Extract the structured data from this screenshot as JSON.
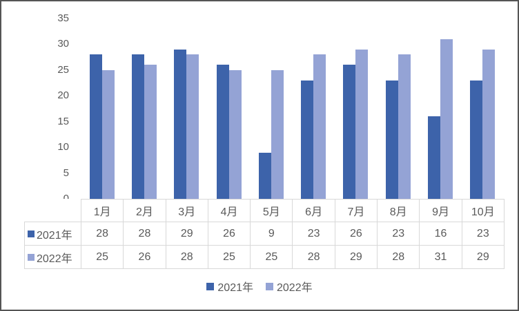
{
  "colors": {
    "series1": "#3D63AA",
    "series2": "#94A3D5",
    "text": "#595959",
    "table_border": "#d8d8d8",
    "frame_border": "#555555",
    "background": "#ffffff"
  },
  "chart_data": {
    "type": "bar",
    "title": "",
    "xlabel": "",
    "ylabel": "",
    "categories": [
      "1月",
      "2月",
      "3月",
      "4月",
      "5月",
      "6月",
      "7月",
      "8月",
      "9月",
      "10月"
    ],
    "series": [
      {
        "name": "2021年",
        "color": "#3D63AA",
        "values": [
          28,
          28,
          29,
          26,
          9,
          23,
          26,
          23,
          16,
          23
        ]
      },
      {
        "name": "2022年",
        "color": "#94A3D5",
        "values": [
          25,
          26,
          28,
          25,
          25,
          28,
          29,
          28,
          31,
          29
        ]
      }
    ],
    "ylim": [
      0,
      35
    ],
    "yticks": [
      0,
      5,
      10,
      15,
      20,
      25,
      30,
      35
    ],
    "grid": false,
    "legend_position": "bottom",
    "data_table_shown": true
  }
}
